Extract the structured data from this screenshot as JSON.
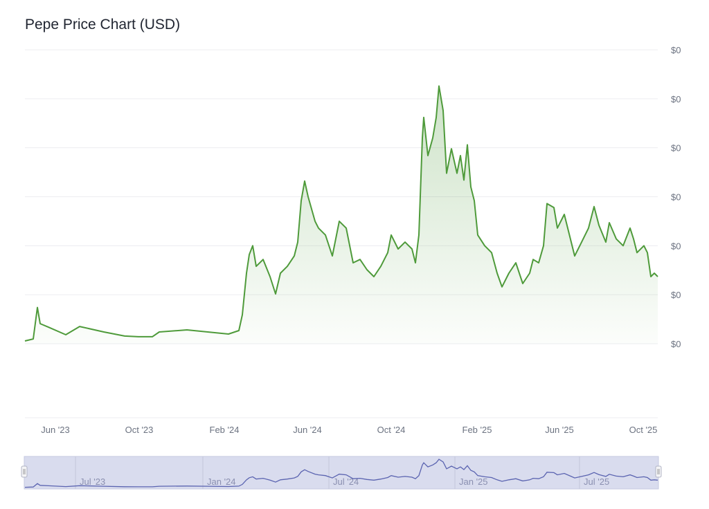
{
  "chart_data": {
    "type": "area",
    "title": "Pepe Price Chart (USD)",
    "value_unit": "USD x 1e-6 (approx.)",
    "x_unit": "days since first data point",
    "ylim": [
      0,
      30
    ],
    "xlim": [
      0,
      914
    ],
    "grid": true,
    "y_ticks": [
      {
        "value": 0,
        "label": "$0"
      },
      {
        "value": 5,
        "label": "$0"
      },
      {
        "value": 10,
        "label": "$0"
      },
      {
        "value": 15,
        "label": "$0"
      },
      {
        "value": 20,
        "label": "$0"
      },
      {
        "value": 25,
        "label": "$0"
      },
      {
        "value": 30,
        "label": "$0"
      }
    ],
    "x_ticks": [
      {
        "day": 44,
        "label": "Jun '23"
      },
      {
        "day": 165,
        "label": "Oct '23"
      },
      {
        "day": 288,
        "label": "Feb '24"
      },
      {
        "day": 408,
        "label": "Jun '24"
      },
      {
        "day": 529,
        "label": "Oct '24"
      },
      {
        "day": 653,
        "label": "Feb '25"
      },
      {
        "day": 772,
        "label": "Jun '25"
      },
      {
        "day": 893,
        "label": "Oct '25"
      }
    ],
    "navigator_ticks": [
      {
        "day": 73,
        "label": "Jul '23"
      },
      {
        "day": 257,
        "label": "Jan '24"
      },
      {
        "day": 439,
        "label": "Jul '24"
      },
      {
        "day": 621,
        "label": "Jan '25"
      },
      {
        "day": 801,
        "label": "Jul '25"
      }
    ],
    "series": [
      {
        "name": "Price",
        "color": "#4e9a3a",
        "x": [
          0,
          12,
          18,
          22,
          34,
          59,
          79,
          114,
          144,
          164,
          184,
          194,
          234,
          264,
          294,
          309,
          314,
          320,
          324,
          329,
          334,
          344,
          354,
          362,
          369,
          379,
          389,
          394,
          399,
          404,
          409,
          419,
          424,
          434,
          444,
          454,
          464,
          474,
          484,
          494,
          504,
          514,
          524,
          529,
          539,
          549,
          559,
          564,
          569,
          574,
          576,
          582,
          589,
          594,
          598,
          604,
          609,
          616,
          624,
          629,
          634,
          639,
          644,
          649,
          654,
          664,
          674,
          682,
          689,
          699,
          709,
          719,
          729,
          734,
          742,
          749,
          754,
          764,
          769,
          779,
          789,
          794,
          804,
          814,
          822,
          829,
          839,
          844,
          854,
          864,
          874,
          879,
          884,
          894,
          899,
          904,
          909,
          914
        ],
        "values": [
          0.28,
          0.49,
          3.7,
          2.05,
          1.69,
          0.92,
          1.76,
          1.2,
          0.78,
          0.71,
          0.71,
          1.2,
          1.41,
          1.2,
          0.99,
          1.34,
          2.96,
          7.2,
          9.1,
          10.0,
          7.9,
          8.6,
          6.85,
          5.08,
          7.2,
          7.9,
          8.96,
          10.37,
          14.6,
          16.6,
          15.0,
          12.5,
          11.8,
          11.1,
          8.96,
          12.5,
          11.8,
          8.26,
          8.6,
          7.55,
          6.85,
          7.9,
          9.3,
          11.1,
          9.67,
          10.37,
          9.67,
          8.26,
          11.1,
          21.0,
          23.1,
          19.2,
          21.0,
          23.1,
          26.3,
          23.8,
          17.4,
          19.9,
          17.4,
          19.2,
          16.7,
          20.3,
          16.0,
          14.6,
          11.1,
          10.0,
          9.3,
          7.2,
          5.8,
          7.2,
          8.26,
          6.14,
          7.2,
          8.6,
          8.26,
          10.0,
          14.3,
          13.9,
          11.8,
          13.2,
          10.37,
          8.96,
          10.37,
          11.8,
          14.0,
          12.1,
          10.37,
          12.35,
          10.7,
          10.0,
          11.8,
          10.7,
          9.3,
          10.0,
          9.3,
          6.85,
          7.2,
          6.85
        ]
      }
    ],
    "navigator": {
      "line_color": "#5a63b0",
      "fill_color": "#d9dcee"
    }
  }
}
